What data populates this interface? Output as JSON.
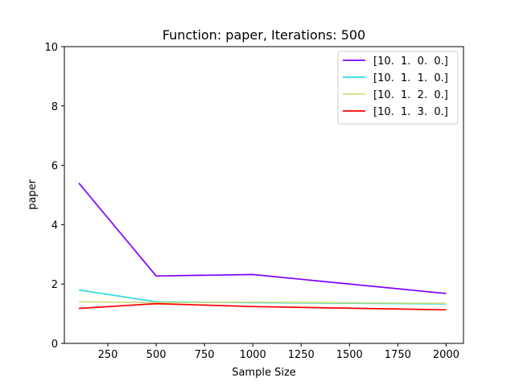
{
  "chart_data": {
    "type": "line",
    "title": "Function: paper, Iterations: 500",
    "xlabel": "Sample Size",
    "ylabel": "paper",
    "xlim": [
      25,
      2090
    ],
    "ylim": [
      0,
      10
    ],
    "xticks": [
      250,
      500,
      750,
      1000,
      1250,
      1500,
      1750,
      2000
    ],
    "yticks": [
      0,
      2,
      4,
      6,
      8,
      10
    ],
    "grid": false,
    "legend_position": "top-right",
    "x": [
      100,
      500,
      1000,
      2000
    ],
    "series": [
      {
        "name": "[10.  1.  0.  0.]",
        "color": "#8000ff",
        "values": [
          5.4,
          2.27,
          2.32,
          1.68
        ]
      },
      {
        "name": "[10.  1.  1.  0.]",
        "color": "#2adddd",
        "values": [
          1.8,
          1.4,
          1.37,
          1.33
        ]
      },
      {
        "name": "[10.  1.  2.  0.]",
        "color": "#d4dd80",
        "values": [
          1.4,
          1.37,
          1.39,
          1.35
        ]
      },
      {
        "name": "[10.  1.  3.  0.]",
        "color": "#ff0000",
        "values": [
          1.18,
          1.34,
          1.24,
          1.13
        ]
      }
    ]
  }
}
